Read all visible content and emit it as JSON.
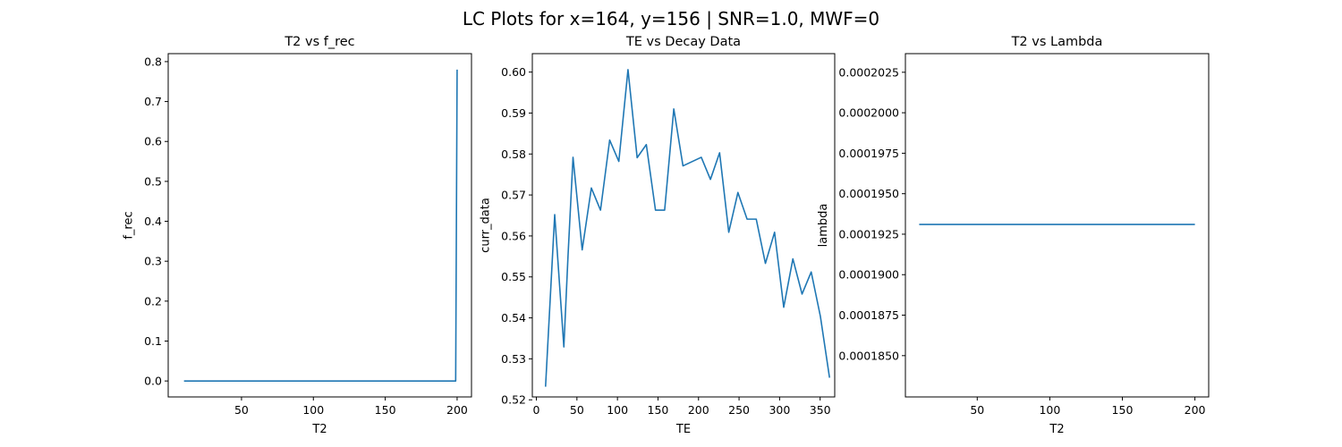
{
  "figure": {
    "suptitle": "LC Plots for x=164, y=156 | SNR=1.0, MWF=0"
  },
  "chart_data": [
    {
      "type": "line",
      "title": "T2 vs f_rec",
      "xlabel": "T2",
      "ylabel": "f_rec",
      "xlim": [
        -1,
        210
      ],
      "ylim": [
        -0.04,
        0.82
      ],
      "xticks": [
        50,
        100,
        150,
        200
      ],
      "xtick_labels": [
        "50",
        "100",
        "150",
        "200"
      ],
      "yticks": [
        0.0,
        0.1,
        0.2,
        0.3,
        0.4,
        0.5,
        0.6,
        0.7,
        0.8
      ],
      "ytick_labels": [
        "0.0",
        "0.1",
        "0.2",
        "0.3",
        "0.4",
        "0.5",
        "0.6",
        "0.7",
        "0.8"
      ],
      "color": "#1f77b4",
      "x": [
        10,
        198,
        199,
        200
      ],
      "y": [
        0.0,
        0.0,
        0.0,
        0.78
      ]
    },
    {
      "type": "line",
      "title": "TE vs Decay Data",
      "xlabel": "TE",
      "ylabel": "curr_data",
      "xlim": [
        -5,
        368
      ],
      "ylim": [
        0.5207,
        0.6045
      ],
      "xticks": [
        0,
        50,
        100,
        150,
        200,
        250,
        300,
        350
      ],
      "xtick_labels": [
        "0",
        "50",
        "100",
        "150",
        "200",
        "250",
        "300",
        "350"
      ],
      "yticks": [
        0.52,
        0.53,
        0.54,
        0.55,
        0.56,
        0.57,
        0.58,
        0.59,
        0.6
      ],
      "ytick_labels": [
        "0.52",
        "0.53",
        "0.54",
        "0.55",
        "0.56",
        "0.57",
        "0.58",
        "0.59",
        "0.60"
      ],
      "color": "#1f77b4",
      "x": [
        11.3,
        22.6,
        33.9,
        39,
        45.2,
        56.5,
        67.8,
        79.1,
        90.4,
        101.7,
        113,
        124.3,
        135.6,
        146.9,
        158.2,
        169.5,
        180.8,
        203.4,
        214.7,
        226,
        237.3,
        248.6,
        259.9,
        271.2,
        282.5,
        293.8,
        305.1,
        316.4,
        327.7,
        339,
        350.3,
        361.6
      ],
      "y": [
        0.5232,
        0.5652,
        0.5329,
        0.555,
        0.5792,
        0.5566,
        0.5717,
        0.5663,
        0.5834,
        0.5782,
        0.6006,
        0.5791,
        0.5823,
        0.5663,
        0.5663,
        0.591,
        0.5771,
        0.5792,
        0.5738,
        0.5803,
        0.5609,
        0.5706,
        0.5641,
        0.5641,
        0.5533,
        0.5609,
        0.5426,
        0.5544,
        0.5458,
        0.5512,
        0.5404,
        0.5254
      ]
    },
    {
      "type": "line",
      "title": "T2 vs Lambda",
      "xlabel": "T2",
      "ylabel": "lambda",
      "xlim": [
        0.5,
        209.5
      ],
      "ylim": [
        0.00018245,
        0.00020365
      ],
      "xticks": [
        50,
        100,
        150,
        200
      ],
      "xtick_labels": [
        "50",
        "100",
        "150",
        "200"
      ],
      "yticks": [
        0.000185,
        0.0001875,
        0.00019,
        0.0001925,
        0.000195,
        0.0001975,
        0.0002,
        0.0002025
      ],
      "ytick_labels": [
        "0.0001850",
        "0.0001875",
        "0.0001900",
        "0.0001925",
        "0.0001950",
        "0.0001975",
        "0.0002000",
        "0.0002025"
      ],
      "color": "#1f77b4",
      "x": [
        10,
        200
      ],
      "y": [
        0.0001931,
        0.0001931
      ]
    }
  ]
}
